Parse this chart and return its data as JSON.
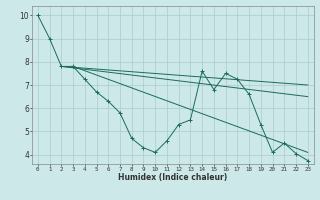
{
  "xlabel": "Humidex (Indice chaleur)",
  "bg_color": "#cce8e8",
  "grid_color": "#aacccc",
  "line_color": "#1a6b5a",
  "xlim": [
    -0.5,
    23.5
  ],
  "ylim": [
    3.6,
    10.4
  ],
  "xticks": [
    0,
    1,
    2,
    3,
    4,
    5,
    6,
    7,
    8,
    9,
    10,
    11,
    12,
    13,
    14,
    15,
    16,
    17,
    18,
    19,
    20,
    21,
    22,
    23
  ],
  "yticks": [
    4,
    5,
    6,
    7,
    8,
    9,
    10
  ],
  "s1x": [
    0,
    1,
    2,
    3,
    4,
    5,
    6,
    7,
    8,
    9,
    10,
    11,
    12,
    13,
    14,
    15,
    16,
    17,
    18,
    19,
    20,
    21,
    22,
    23
  ],
  "s1y": [
    10.0,
    9.0,
    7.8,
    7.8,
    7.25,
    6.7,
    6.3,
    5.8,
    4.7,
    4.3,
    4.1,
    4.6,
    5.3,
    5.5,
    7.6,
    6.8,
    7.5,
    7.25,
    6.6,
    5.3,
    4.1,
    4.5,
    4.05,
    3.75
  ],
  "s2x": [
    2,
    23
  ],
  "s2y": [
    7.8,
    6.5
  ],
  "s3x": [
    2,
    23
  ],
  "s3y": [
    7.8,
    7.0
  ],
  "s4x": [
    3,
    23
  ],
  "s4y": [
    7.8,
    4.1
  ]
}
